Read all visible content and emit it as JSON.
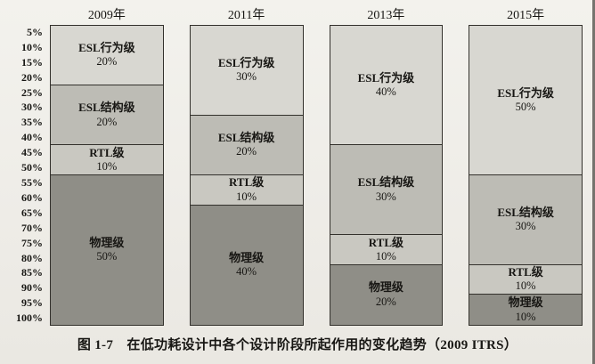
{
  "caption": "图 1-7　在低功耗设计中各个设计阶段所起作用的变化趋势（2009 ITRS）",
  "colors": {
    "outline": "#33312c",
    "paper": "#f1efe9"
  },
  "chart_data": {
    "type": "bar",
    "subtype": "stacked-100-percent-column",
    "orientation": "vertical",
    "value_direction": "top-to-bottom",
    "categories": [
      "2009年",
      "2011年",
      "2013年",
      "2015年"
    ],
    "series": [
      {
        "name": "ESL行为级",
        "values": [
          20,
          30,
          40,
          50
        ],
        "color": "#d8d7d1"
      },
      {
        "name": "ESL结构级",
        "values": [
          20,
          20,
          30,
          30
        ],
        "color": "#bdbcb5"
      },
      {
        "name": "RTL级",
        "values": [
          10,
          10,
          10,
          10
        ],
        "color": "#c9c8c1"
      },
      {
        "name": "物理级",
        "values": [
          50,
          40,
          20,
          10
        ],
        "color": "#8f8e87"
      }
    ],
    "y_axis": {
      "range": [
        0,
        100
      ],
      "unit": "%",
      "ticks": [
        "5%",
        "10%",
        "15%",
        "20%",
        "25%",
        "30%",
        "35%",
        "40%",
        "45%",
        "50%",
        "55%",
        "60%",
        "65%",
        "70%",
        "75%",
        "80%",
        "85%",
        "90%",
        "95%",
        "100%"
      ]
    },
    "grid": false,
    "legend": "none (labels inside segments)",
    "segment_label_format": "{series}\n{value}%"
  }
}
